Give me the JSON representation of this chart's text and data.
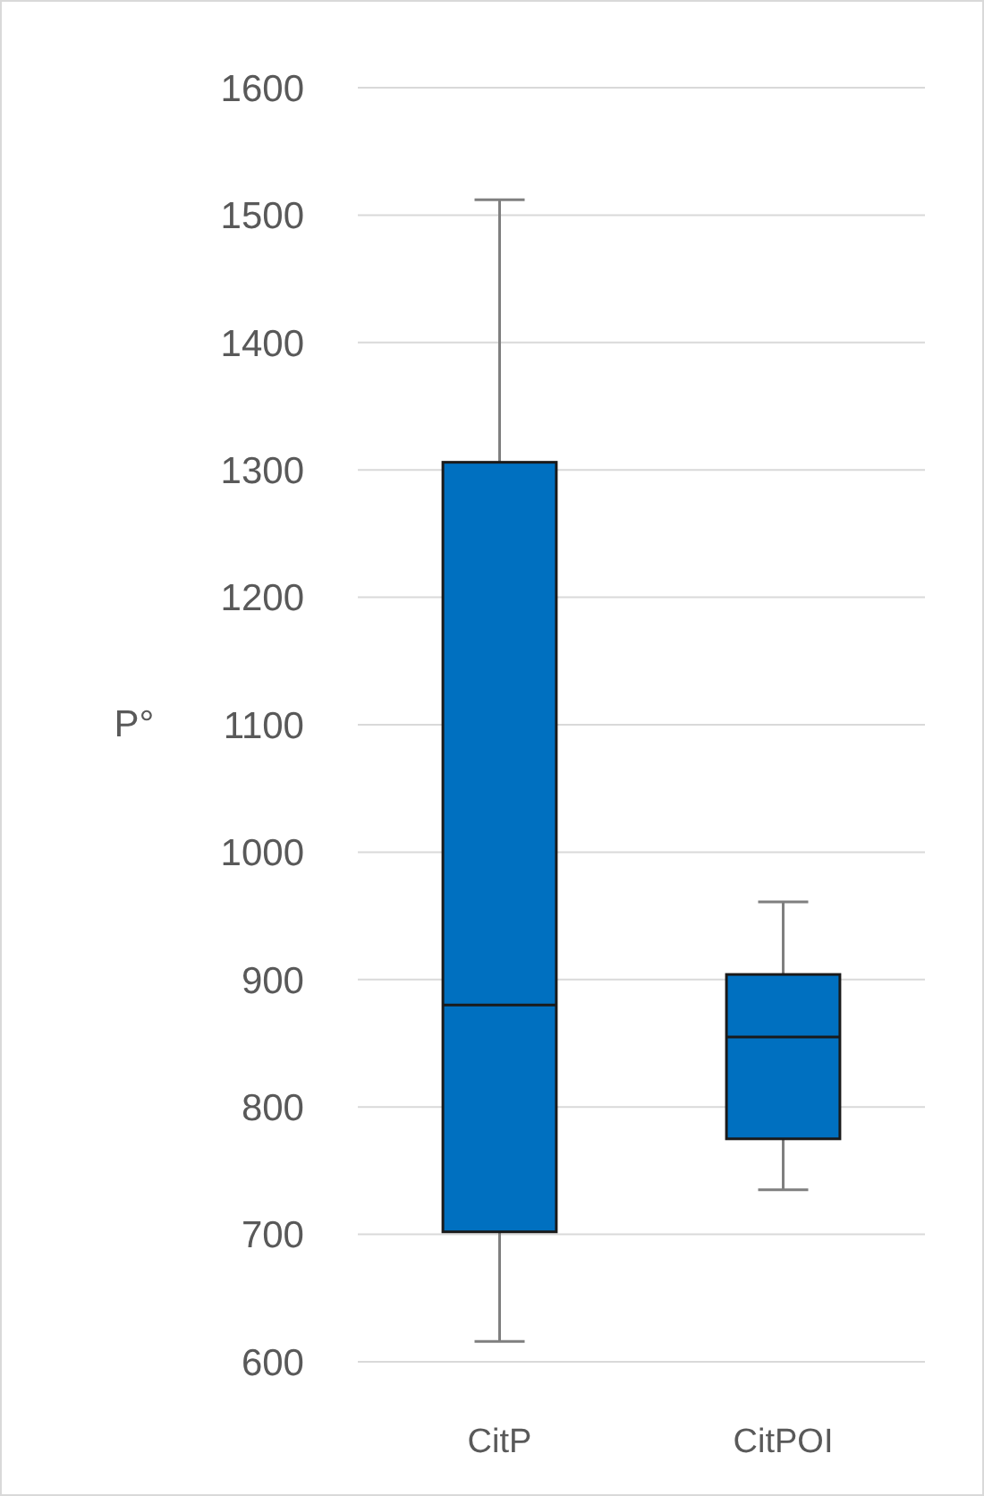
{
  "chart_data": {
    "type": "box",
    "ylabel": "P°",
    "categories": [
      "CitP",
      "CitPOI"
    ],
    "color": "#0070c0",
    "boxes": [
      {
        "low": 616,
        "q1": 702,
        "median": 880,
        "q3": 1306,
        "high": 1512
      },
      {
        "low": 735,
        "q1": 775,
        "median": 855,
        "q3": 904,
        "high": 961
      }
    ],
    "ylim": [
      600,
      1600
    ],
    "yticks": [
      600,
      700,
      800,
      900,
      1000,
      1100,
      1200,
      1300,
      1400,
      1500,
      1600
    ],
    "grid": "y"
  }
}
